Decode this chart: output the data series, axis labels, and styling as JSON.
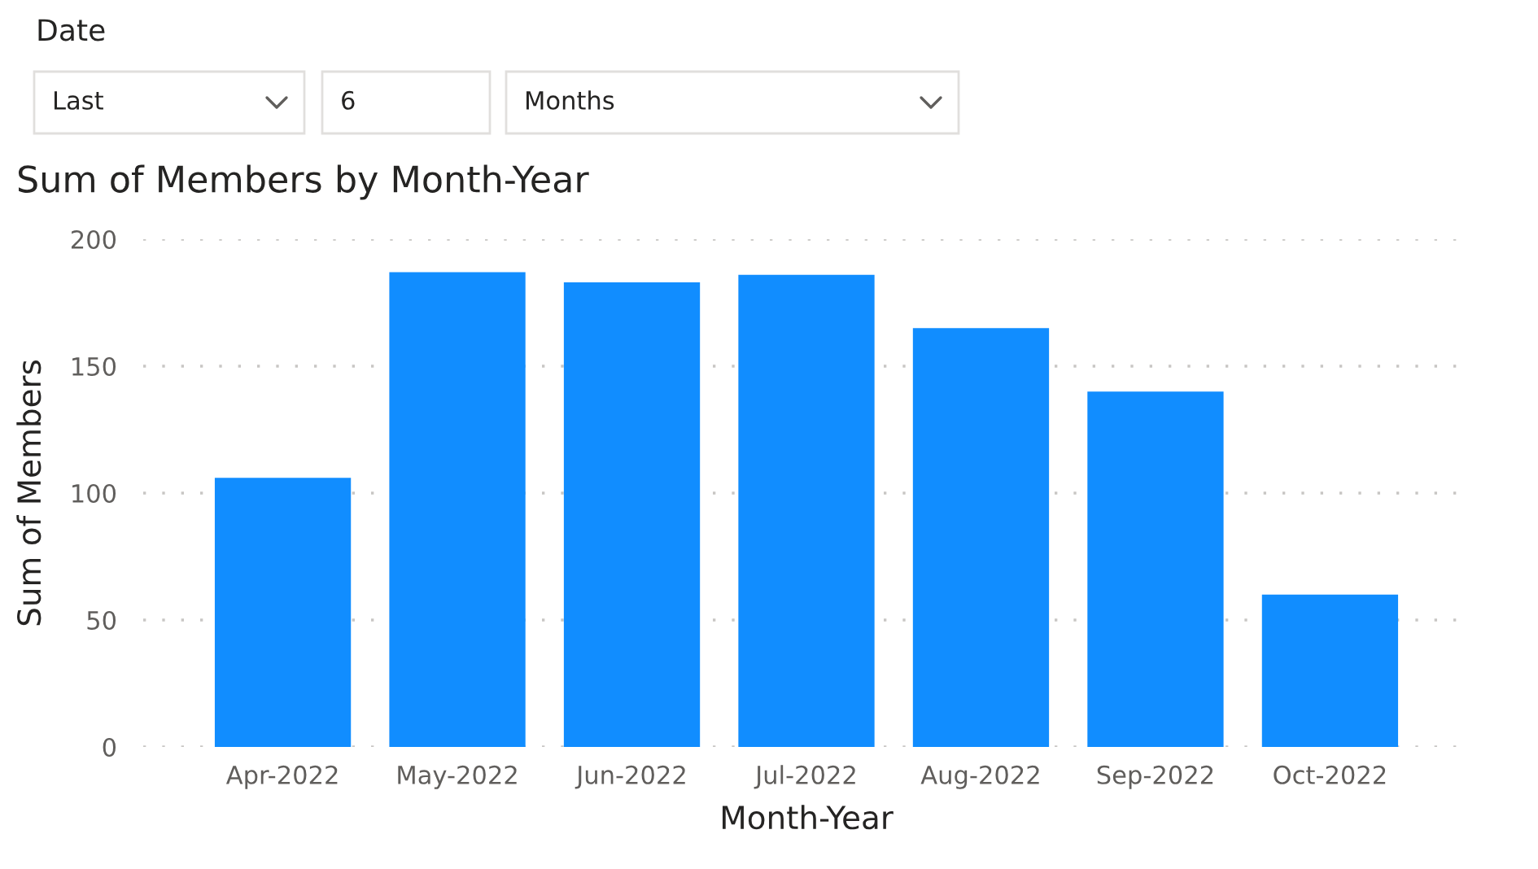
{
  "chart_data": {
    "type": "bar",
    "title": "Sum of Members by Month-Year",
    "xlabel": "Month-Year",
    "ylabel": "Sum of Members",
    "categories": [
      "Apr-2022",
      "May-2022",
      "Jun-2022",
      "Jul-2022",
      "Aug-2022",
      "Sep-2022",
      "Oct-2022"
    ],
    "values": [
      106,
      187,
      183,
      186,
      165,
      140,
      60
    ],
    "color": "#118dff",
    "ylim": [
      0,
      200
    ],
    "yticks": [
      0,
      50,
      100,
      150,
      200
    ],
    "grid": "y",
    "annotations": [
      "Date",
      "Last",
      "6",
      "Months"
    ]
  }
}
